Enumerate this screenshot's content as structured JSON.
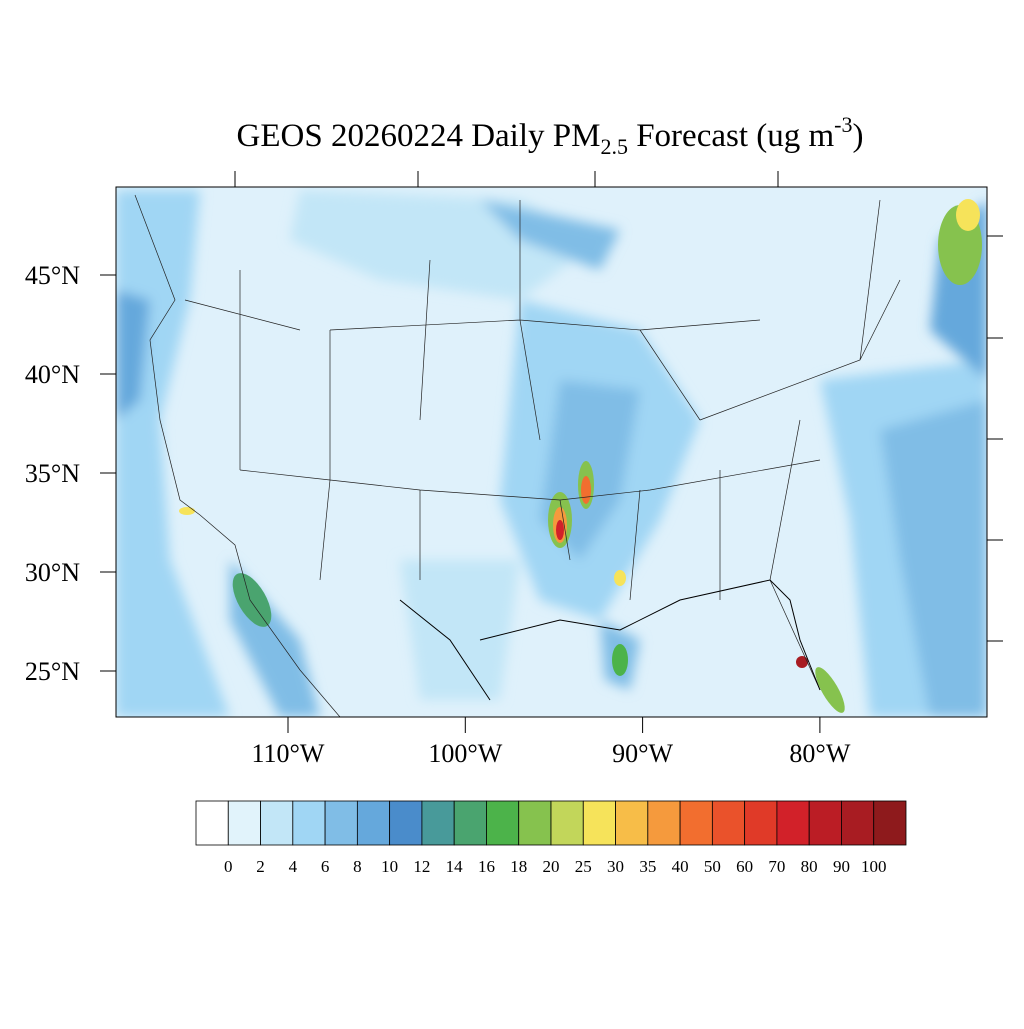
{
  "map": {
    "title": {
      "main": "GEOS 20260224 Daily PM",
      "sub": "2.5",
      "mid": " Forecast (ug m",
      "sup": "-3",
      "end": ")"
    },
    "lat_labels": [
      {
        "value": 25,
        "label": "25°N"
      },
      {
        "value": 30,
        "label": "30°N"
      },
      {
        "value": 35,
        "label": "35°N"
      },
      {
        "value": 40,
        "label": "40°N"
      },
      {
        "value": 45,
        "label": "45°N"
      }
    ],
    "lon_labels": [
      {
        "value": -110,
        "label": "110°W"
      },
      {
        "value": -100,
        "label": "100°W"
      },
      {
        "value": -90,
        "label": "90°W"
      },
      {
        "value": -80,
        "label": "80°W"
      }
    ],
    "colorbar": {
      "levels": [
        0,
        2,
        4,
        6,
        8,
        10,
        12,
        14,
        16,
        18,
        20,
        25,
        30,
        35,
        40,
        50,
        60,
        70,
        80,
        90,
        100
      ],
      "colors": [
        "#ffffff",
        "#e1f3fb",
        "#c2e6f7",
        "#a0d6f4",
        "#80bde6",
        "#65a8dc",
        "#4a8ccb",
        "#489a9a",
        "#4aa46f",
        "#4cb34a",
        "#86c24e",
        "#c2d65a",
        "#f6e35a",
        "#f7bd48",
        "#f59a3d",
        "#f26e2f",
        "#ea522b",
        "#e03a28",
        "#d22129",
        "#bb1d25",
        "#a81c22",
        "#8e1a1c"
      ]
    }
  }
}
